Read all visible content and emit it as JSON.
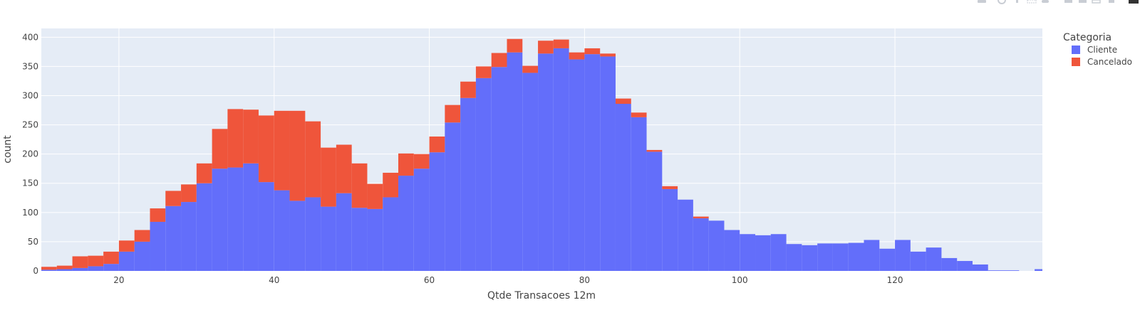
{
  "chart_data": {
    "type": "bar",
    "barmode": "stack",
    "title": "",
    "xlabel": "Qtde Transacoes 12m",
    "ylabel": "count",
    "xlim": [
      10,
      139
    ],
    "ylim": [
      0,
      415
    ],
    "bin_start": 10,
    "bin_width": 2,
    "x_ticks": [
      20,
      40,
      60,
      80,
      100,
      120
    ],
    "y_ticks": [
      0,
      50,
      100,
      150,
      200,
      250,
      300,
      350,
      400
    ],
    "grid": true,
    "legend": {
      "title": "Categoria",
      "placement": "top-right"
    },
    "series": [
      {
        "name": "Cliente",
        "color": "#636efa",
        "values": [
          2,
          3,
          5,
          8,
          12,
          33,
          50,
          84,
          111,
          118,
          150,
          175,
          177,
          184,
          152,
          138,
          120,
          126,
          110,
          133,
          108,
          106,
          126,
          163,
          175,
          203,
          254,
          296,
          330,
          349,
          374,
          339,
          372,
          381,
          362,
          371,
          367,
          286,
          263,
          204,
          140,
          122,
          90,
          86,
          70,
          63,
          61,
          63,
          46,
          44,
          47,
          47,
          48,
          53,
          38,
          53,
          33,
          40,
          22,
          17,
          11,
          1,
          1,
          0,
          3
        ]
      },
      {
        "name": "Cancelado",
        "color": "#ef553b",
        "values": [
          5,
          6,
          20,
          18,
          21,
          19,
          20,
          23,
          26,
          30,
          34,
          68,
          100,
          92,
          114,
          136,
          154,
          130,
          101,
          83,
          76,
          43,
          42,
          38,
          25,
          27,
          30,
          28,
          20,
          24,
          23,
          12,
          22,
          15,
          12,
          10,
          5,
          9,
          8,
          3,
          5,
          0,
          3,
          0,
          0,
          0,
          0,
          0,
          0,
          0,
          0,
          0,
          0,
          0,
          0,
          0,
          0,
          0,
          0,
          0,
          0,
          0,
          0,
          0,
          0
        ]
      }
    ]
  }
}
